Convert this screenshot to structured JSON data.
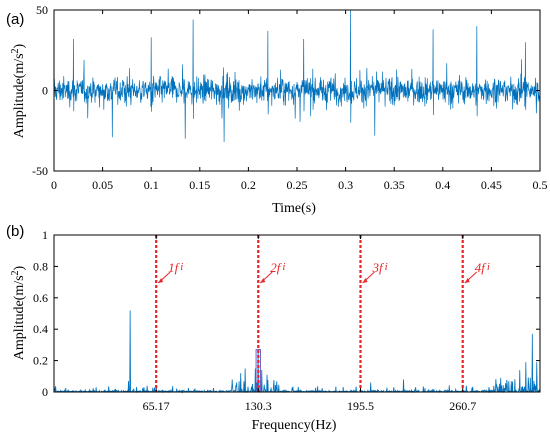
{
  "chart_data": [
    {
      "type": "line",
      "panel_label": "(a)",
      "xlabel": "Time(s)",
      "ylabel": "Amplitude(m/s",
      "ylabel_sup": "2",
      "ylabel_close": ")",
      "xlim": [
        0,
        0.5
      ],
      "ylim": [
        -50,
        50
      ],
      "x_ticks": [
        0,
        0.05,
        0.1,
        0.15,
        0.2,
        0.25,
        0.3,
        0.35,
        0.4,
        0.45,
        0.5
      ],
      "x_tick_labels": [
        "0",
        "0.05",
        "0.1",
        "0.15",
        "0.2",
        "0.25",
        "0.3",
        "0.35",
        "0.4",
        "0.45",
        "0.5"
      ],
      "y_ticks": [
        -50,
        0,
        50
      ],
      "y_tick_labels": [
        "-50",
        "0",
        "50"
      ],
      "series_color": "#0072bd",
      "noise_rms": 7,
      "peaks": [
        {
          "x": 0.305,
          "y": 50
        },
        {
          "x": 0.305,
          "y": -34
        },
        {
          "x": 0.143,
          "y": 44
        },
        {
          "x": 0.143,
          "y": -36
        },
        {
          "x": 0.435,
          "y": 40
        },
        {
          "x": 0.39,
          "y": 38
        },
        {
          "x": 0.22,
          "y": 37
        },
        {
          "x": 0.1,
          "y": 33
        },
        {
          "x": 0.257,
          "y": 32
        },
        {
          "x": 0.02,
          "y": 32
        },
        {
          "x": 0.175,
          "y": -32
        },
        {
          "x": 0.135,
          "y": -30
        },
        {
          "x": 0.485,
          "y": 30
        },
        {
          "x": 0.33,
          "y": -28
        },
        {
          "x": 0.06,
          "y": -29
        }
      ]
    },
    {
      "type": "line",
      "panel_label": "(b)",
      "xlabel": "Frequency(Hz)",
      "ylabel": "Amplitude(m/s",
      "ylabel_sup": "2",
      "ylabel_close": ")",
      "xlim": [
        0,
        310
      ],
      "ylim": [
        0,
        1
      ],
      "x_ticks": [
        65.17,
        130.3,
        195.5,
        260.7
      ],
      "x_tick_labels": [
        "65.17",
        "130.3",
        "195.5",
        "260.7"
      ],
      "y_ticks": [
        0,
        0.2,
        0.4,
        0.6,
        0.8,
        1
      ],
      "y_tick_labels": [
        "0",
        "0.2",
        "0.4",
        "0.6",
        "0.8",
        "1"
      ],
      "series_color": "#0072bd",
      "marker_color": "#e8262a",
      "markers": [
        {
          "x": 65.17,
          "label": "1f",
          "sub": "i"
        },
        {
          "x": 130.3,
          "label": "2f",
          "sub": "i"
        },
        {
          "x": 195.5,
          "label": "3f",
          "sub": "i"
        },
        {
          "x": 260.7,
          "label": "4f",
          "sub": "i"
        }
      ],
      "peaks": [
        {
          "x": 48.5,
          "y": 0.52
        },
        {
          "x": 47.5,
          "y": 0.07
        },
        {
          "x": 130.3,
          "y": 0.27
        },
        {
          "x": 128.5,
          "y": 0.15
        },
        {
          "x": 132.5,
          "y": 0.14
        },
        {
          "x": 119,
          "y": 0.12
        },
        {
          "x": 122,
          "y": 0.15
        },
        {
          "x": 136,
          "y": 0.11
        },
        {
          "x": 301,
          "y": 0.19
        },
        {
          "x": 305,
          "y": 0.37
        },
        {
          "x": 308,
          "y": 0.19
        },
        {
          "x": 297,
          "y": 0.14
        },
        {
          "x": 202,
          "y": 0.06
        },
        {
          "x": 223,
          "y": 0.08
        }
      ],
      "highlight_box": {
        "x0": 128.9,
        "x1": 131.7,
        "y0": 0,
        "y1": 0.27
      }
    }
  ]
}
